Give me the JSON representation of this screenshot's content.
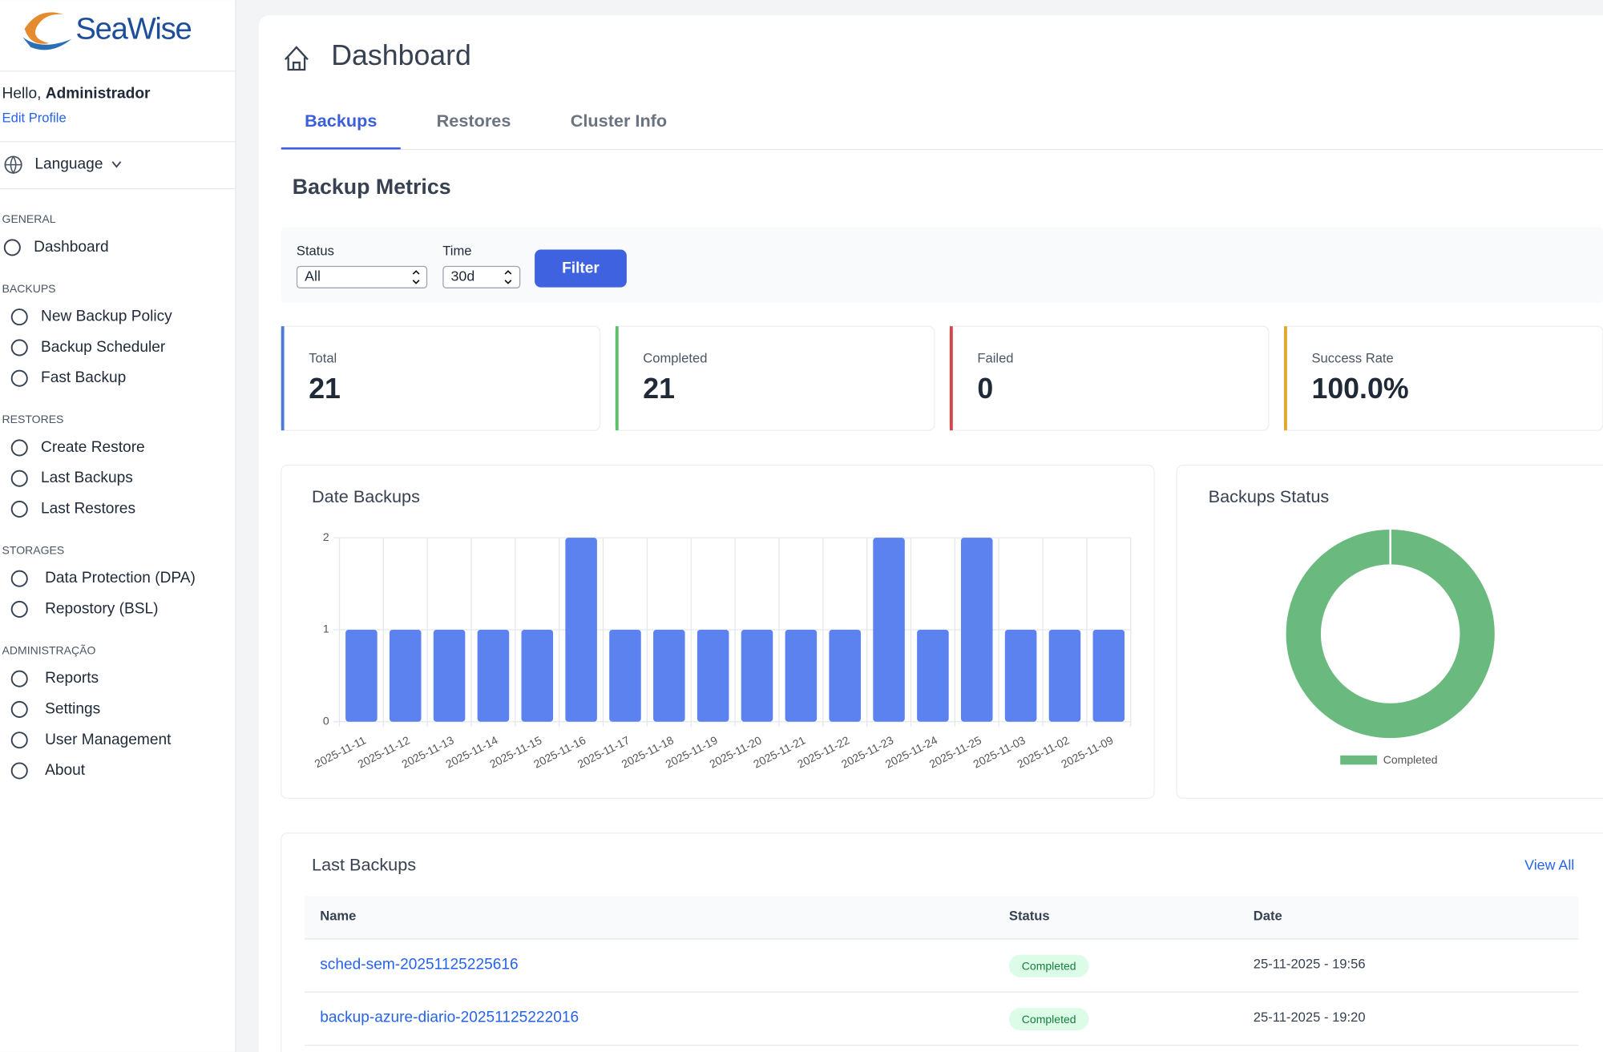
{
  "sidebar": {
    "brand": "SeaWise",
    "greeting": "Hello,",
    "user": "Administrador",
    "edit_profile": "Edit Profile",
    "language": "Language",
    "sections": [
      {
        "title": "GENERAL",
        "items": [
          "Dashboard"
        ]
      },
      {
        "title": "BACKUPS",
        "items": [
          "New Backup Policy",
          "Backup Scheduler",
          "Fast Backup"
        ]
      },
      {
        "title": "RESTORES",
        "items": [
          "Create Restore",
          "Last Backups",
          "Last Restores"
        ]
      },
      {
        "title": "STORAGES",
        "items": [
          "Data Protection (DPA)",
          "Repostory (BSL)"
        ]
      },
      {
        "title": "ADMINISTRAÇÃO",
        "items": [
          "Reports",
          "Settings",
          "User Management",
          "About"
        ]
      }
    ]
  },
  "header": {
    "title": "Dashboard"
  },
  "tabs": {
    "items": [
      "Backups",
      "Restores",
      "Cluster Info"
    ],
    "active": 0
  },
  "metrics": {
    "title": "Backup Metrics",
    "filters": {
      "status_label": "Status",
      "status_value": "All",
      "time_label": "Time",
      "time_value": "30d",
      "button": "Filter"
    },
    "cards": [
      {
        "label": "Total",
        "value": "21",
        "color": "#4a7bd8"
      },
      {
        "label": "Completed",
        "value": "21",
        "color": "#5cbf6a"
      },
      {
        "label": "Failed",
        "value": "0",
        "color": "#d64545"
      },
      {
        "label": "Success Rate",
        "value": "100.0%",
        "color": "#e0a82e"
      }
    ]
  },
  "date_backups_chart": {
    "type": "bar",
    "title": "Date Backups",
    "categories": [
      "2025-11-11",
      "2025-11-12",
      "2025-11-13",
      "2025-11-14",
      "2025-11-15",
      "2025-11-16",
      "2025-11-17",
      "2025-11-18",
      "2025-11-19",
      "2025-11-20",
      "2025-11-21",
      "2025-11-22",
      "2025-11-23",
      "2025-11-24",
      "2025-11-25",
      "2025-11-03",
      "2025-11-02",
      "2025-11-09"
    ],
    "values": [
      1,
      1,
      1,
      1,
      1,
      2,
      1,
      1,
      1,
      1,
      1,
      1,
      2,
      1,
      2,
      1,
      1,
      1
    ],
    "color": "#5b82ef",
    "ylim": [
      0,
      2
    ],
    "yticks": [
      0,
      1,
      2
    ],
    "grid": true
  },
  "status_chart": {
    "type": "doughnut",
    "title": "Backups Status",
    "categories": [
      "Completed"
    ],
    "values": [
      21
    ],
    "colors": [
      "#6aba7f"
    ]
  },
  "last_backups": {
    "title": "Last Backups",
    "view_all": "View All",
    "columns": [
      "Name",
      "Status",
      "Date"
    ],
    "rows": [
      [
        "sched-sem-20251125225616",
        "Completed",
        "25-11-2025 - 19:56"
      ],
      [
        "backup-azure-diario-20251125222016",
        "Completed",
        "25-11-2025 - 19:20"
      ]
    ]
  }
}
